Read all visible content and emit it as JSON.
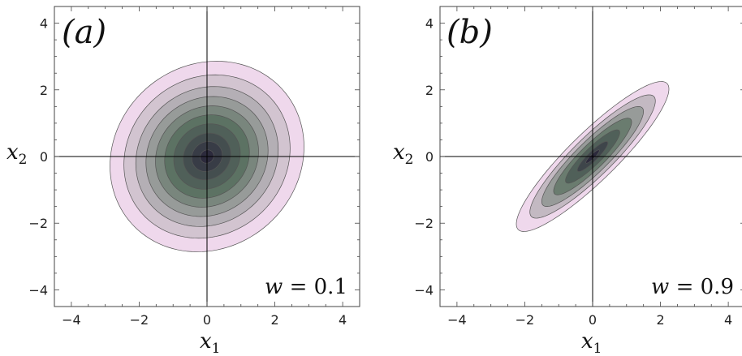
{
  "colors": {
    "outer": "#efd8ec",
    "inner": "#2c2a3c",
    "mid": "#5d7363",
    "contour_line": "#555555",
    "axis": "#000000",
    "frame": "#444444"
  },
  "chart_data": [
    {
      "type": "contour",
      "panel_label": "(a)",
      "annotation": {
        "var": "w",
        "value": "0.1"
      },
      "xlabel": "x",
      "xlabel_sub": "1",
      "ylabel": "x",
      "ylabel_sub": "2",
      "xlim": [
        -4.5,
        4.5
      ],
      "ylim": [
        -4.5,
        4.5
      ],
      "xticks": [
        -4,
        -2,
        0,
        2,
        4
      ],
      "yticks": [
        -4,
        -2,
        0,
        2,
        4
      ],
      "tick_labels": [
        "−4",
        "−2",
        "0",
        "2",
        "4"
      ],
      "correlation": 0.1,
      "center": [
        0,
        0
      ],
      "contour_radii_mahalanobis": [
        2.86,
        2.45,
        2.1,
        1.8,
        1.52,
        1.25,
        0.98,
        0.7,
        0.45,
        0.2
      ]
    },
    {
      "type": "contour",
      "panel_label": "(b)",
      "annotation": {
        "var": "w",
        "value": "0.9"
      },
      "xlabel": "x",
      "xlabel_sub": "1",
      "ylabel": "x",
      "ylabel_sub": "2",
      "xlim": [
        -4.5,
        4.5
      ],
      "ylim": [
        -4.5,
        4.5
      ],
      "xticks": [
        -4,
        -2,
        0,
        2,
        4
      ],
      "yticks": [
        -4,
        -2,
        0,
        2,
        4
      ],
      "tick_labels": [
        "−4",
        "−2",
        "0",
        "2",
        "4"
      ],
      "correlation": 0.9,
      "center": [
        0,
        0
      ],
      "contour_radii_mahalanobis": [
        2.25,
        1.85,
        1.5,
        1.15,
        0.8,
        0.45,
        0.2
      ]
    }
  ]
}
